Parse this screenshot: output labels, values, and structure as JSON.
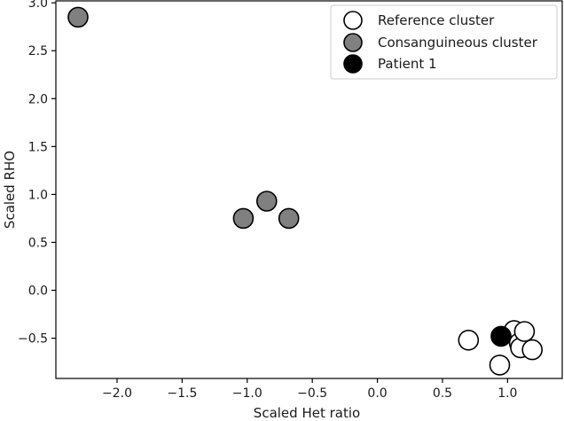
{
  "chart_data": {
    "type": "scatter",
    "xlabel": "Scaled Het ratio",
    "ylabel": "Scaled RHO",
    "xlim": [
      -2.47,
      1.42
    ],
    "ylim": [
      -0.92,
      3.02
    ],
    "xticks": [
      -2.0,
      -1.5,
      -1.0,
      -0.5,
      0.0,
      0.5,
      1.0
    ],
    "xtick_labels": [
      "−2.0",
      "−1.5",
      "−1.0",
      "−0.5",
      "0.0",
      "0.5",
      "1.0"
    ],
    "yticks": [
      -0.5,
      0.0,
      0.5,
      1.0,
      1.5,
      2.0,
      2.5,
      3.0
    ],
    "ytick_labels": [
      "−0.5",
      "0.0",
      "0.5",
      "1.0",
      "1.5",
      "2.0",
      "2.5",
      "3.0"
    ],
    "grid": false,
    "legend_position": "top-right",
    "series": [
      {
        "name": "Reference cluster",
        "color": "#ffffff",
        "points": [
          {
            "x": 0.7,
            "y": -0.52
          },
          {
            "x": 0.94,
            "y": -0.78
          },
          {
            "x": 1.05,
            "y": -0.42
          },
          {
            "x": 1.09,
            "y": -0.55
          },
          {
            "x": 1.1,
            "y": -0.6
          },
          {
            "x": 1.19,
            "y": -0.62
          },
          {
            "x": 1.13,
            "y": -0.43
          }
        ]
      },
      {
        "name": "Consanguineous cluster",
        "color": "#808080",
        "points": [
          {
            "x": -2.3,
            "y": 2.85
          },
          {
            "x": -1.03,
            "y": 0.75
          },
          {
            "x": -0.85,
            "y": 0.93
          },
          {
            "x": -0.68,
            "y": 0.75
          }
        ]
      },
      {
        "name": "Patient 1",
        "color": "#000000",
        "points": [
          {
            "x": 0.95,
            "y": -0.48
          }
        ]
      }
    ]
  }
}
